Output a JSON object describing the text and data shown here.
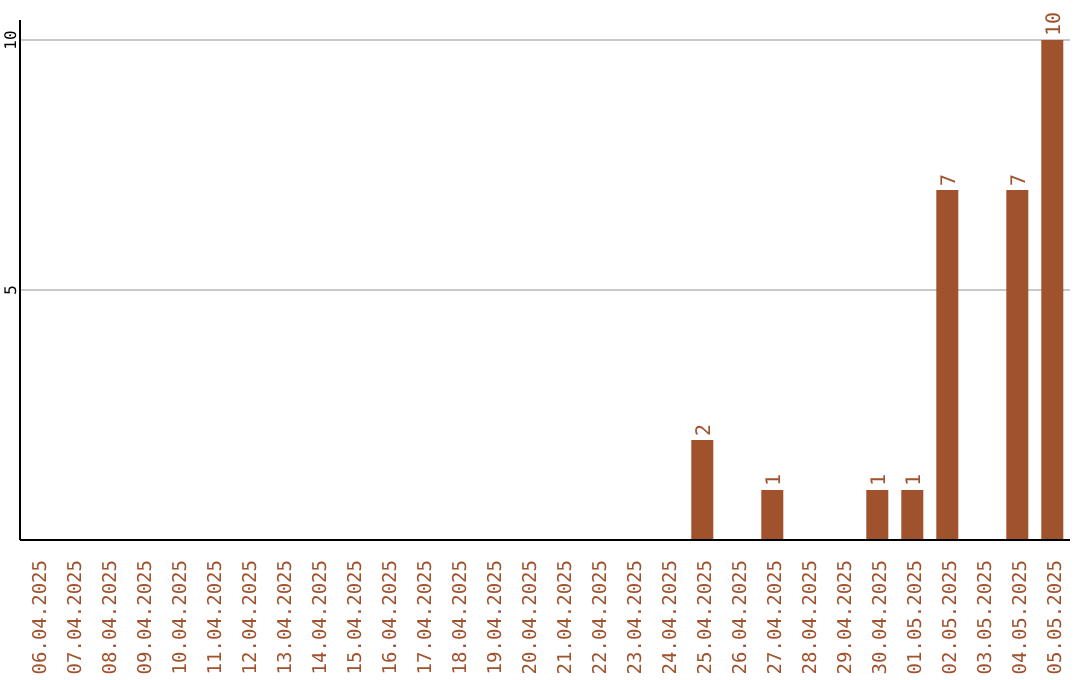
{
  "chart_data": {
    "type": "bar",
    "categories": [
      "06.04.2025",
      "07.04.2025",
      "08.04.2025",
      "09.04.2025",
      "10.04.2025",
      "11.04.2025",
      "12.04.2025",
      "13.04.2025",
      "14.04.2025",
      "15.04.2025",
      "16.04.2025",
      "17.04.2025",
      "18.04.2025",
      "19.04.2025",
      "20.04.2025",
      "21.04.2025",
      "22.04.2025",
      "23.04.2025",
      "24.04.2025",
      "25.04.2025",
      "26.04.2025",
      "27.04.2025",
      "28.04.2025",
      "29.04.2025",
      "30.04.2025",
      "01.05.2025",
      "02.05.2025",
      "03.05.2025",
      "04.05.2025",
      "05.05.2025"
    ],
    "values": [
      0,
      0,
      0,
      0,
      0,
      0,
      0,
      0,
      0,
      0,
      0,
      0,
      0,
      0,
      0,
      0,
      0,
      0,
      0,
      2,
      0,
      1,
      0,
      0,
      1,
      1,
      7,
      0,
      7,
      10
    ],
    "value_labels": [
      null,
      null,
      null,
      null,
      null,
      null,
      null,
      null,
      null,
      null,
      null,
      null,
      null,
      null,
      null,
      null,
      null,
      null,
      null,
      "2",
      null,
      "1",
      null,
      null,
      "1",
      "1",
      "7",
      null,
      "7",
      "10"
    ],
    "color": "#a0522d",
    "ylim": [
      0,
      10.4
    ],
    "yticks": [
      {
        "value": 0,
        "label": null
      },
      5,
      10
    ],
    "grid": "y"
  }
}
